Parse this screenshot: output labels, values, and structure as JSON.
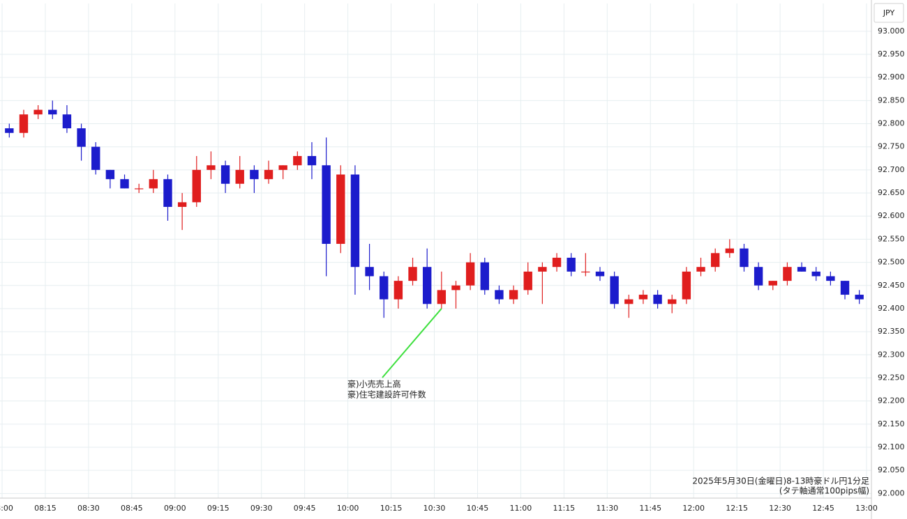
{
  "chart_data": {
    "type": "candlestick",
    "currency_label": "JPY",
    "caption": [
      "2025年5月30日(金曜日)8-13時豪ドル円1分足",
      "(タテ軸通常100pips幅)"
    ],
    "annotation": [
      "豪)小売売上高",
      "豪)住宅建設許可件数"
    ],
    "annotation_time": "10:30",
    "up_color": "#e01e1e",
    "down_color": "#1c1ccc",
    "annotation_color": "#3ee03e",
    "xlim": [
      "08:00",
      "13:00"
    ],
    "xticks": [
      "08:00",
      "08:15",
      "08:30",
      "08:45",
      "09:00",
      "09:15",
      "09:30",
      "09:45",
      "10:00",
      "10:15",
      "10:30",
      "10:45",
      "11:00",
      "11:15",
      "11:30",
      "11:45",
      "12:00",
      "12:15",
      "12:30",
      "12:45",
      "13:00"
    ],
    "ylim": [
      91.99,
      93.06
    ],
    "yticks": [
      {
        "value": 92,
        "label": "92.000"
      },
      {
        "value": 92.05,
        "label": "92.050"
      },
      {
        "value": 92.1,
        "label": "92.100"
      },
      {
        "value": 92.15,
        "label": "92.150"
      },
      {
        "value": 92.2,
        "label": "92.200"
      },
      {
        "value": 92.25,
        "label": "92.250"
      },
      {
        "value": 92.3,
        "label": "92.300"
      },
      {
        "value": 92.35,
        "label": "92.350"
      },
      {
        "value": 92.4,
        "label": "92.400"
      },
      {
        "value": 92.45,
        "label": "92.450"
      },
      {
        "value": 92.5,
        "label": "92.500"
      },
      {
        "value": 92.55,
        "label": "92.550"
      },
      {
        "value": 92.6,
        "label": "92.600"
      },
      {
        "value": 92.65,
        "label": "92.650"
      },
      {
        "value": 92.7,
        "label": "92.700"
      },
      {
        "value": 92.75,
        "label": "92.750"
      },
      {
        "value": 92.8,
        "label": "92.800"
      },
      {
        "value": 92.85,
        "label": "92.850"
      },
      {
        "value": 92.9,
        "label": "92.900"
      },
      {
        "value": 92.95,
        "label": "92.950"
      },
      {
        "value": 93,
        "label": "93.000"
      }
    ],
    "grid": true,
    "x": [
      "08:00",
      "08:05",
      "08:10",
      "08:15",
      "08:20",
      "08:25",
      "08:30",
      "08:35",
      "08:40",
      "08:45",
      "08:50",
      "08:55",
      "09:00",
      "09:05",
      "09:10",
      "09:15",
      "09:20",
      "09:25",
      "09:30",
      "09:35",
      "09:40",
      "09:45",
      "09:50",
      "09:55",
      "10:00",
      "10:05",
      "10:10",
      "10:15",
      "10:20",
      "10:25",
      "10:30",
      "10:35",
      "10:40",
      "10:45",
      "10:50",
      "10:55",
      "11:00",
      "11:05",
      "11:10",
      "11:15",
      "11:20",
      "11:25",
      "11:30",
      "11:35",
      "11:40",
      "11:45",
      "11:50",
      "11:55",
      "12:00",
      "12:05",
      "12:10",
      "12:15",
      "12:20",
      "12:25",
      "12:30",
      "12:35",
      "12:40",
      "12:45",
      "12:50",
      "12:55"
    ],
    "open": [
      92.79,
      92.78,
      92.82,
      92.83,
      92.82,
      92.79,
      92.75,
      92.7,
      92.68,
      92.66,
      92.66,
      92.68,
      92.62,
      92.63,
      92.7,
      92.71,
      92.67,
      92.7,
      92.68,
      92.7,
      92.71,
      92.73,
      92.71,
      92.54,
      92.69,
      92.49,
      92.47,
      92.42,
      92.46,
      92.49,
      92.41,
      92.44,
      92.45,
      92.5,
      92.44,
      92.42,
      92.44,
      92.48,
      92.49,
      92.51,
      92.48,
      92.48,
      92.47,
      92.41,
      92.42,
      92.43,
      92.41,
      92.42,
      92.48,
      92.49,
      92.52,
      92.53,
      92.49,
      92.45,
      92.46,
      92.49,
      92.48,
      92.47,
      92.46,
      92.43
    ],
    "high": [
      92.8,
      92.83,
      92.84,
      92.85,
      92.84,
      92.8,
      92.76,
      92.7,
      92.69,
      92.67,
      92.7,
      92.69,
      92.65,
      92.73,
      92.74,
      92.72,
      92.73,
      92.71,
      92.72,
      92.71,
      92.74,
      92.76,
      92.77,
      92.71,
      92.71,
      92.54,
      92.48,
      92.47,
      92.51,
      92.53,
      92.48,
      92.46,
      92.52,
      92.51,
      92.45,
      92.45,
      92.5,
      92.5,
      92.52,
      92.52,
      92.52,
      92.49,
      92.48,
      92.43,
      92.44,
      92.44,
      92.43,
      92.49,
      92.51,
      92.53,
      92.55,
      92.54,
      92.5,
      92.46,
      92.5,
      92.5,
      92.49,
      92.48,
      92.46,
      92.44
    ],
    "low": [
      92.77,
      92.77,
      92.81,
      92.81,
      92.78,
      92.72,
      92.69,
      92.66,
      92.66,
      92.65,
      92.65,
      92.59,
      92.57,
      92.62,
      92.68,
      92.65,
      92.66,
      92.65,
      92.67,
      92.68,
      92.7,
      92.68,
      92.47,
      92.52,
      92.43,
      92.44,
      92.38,
      92.4,
      92.45,
      92.4,
      92.4,
      92.4,
      92.44,
      92.43,
      92.41,
      92.41,
      92.43,
      92.41,
      92.48,
      92.47,
      92.47,
      92.46,
      92.4,
      92.38,
      92.41,
      92.4,
      92.39,
      92.41,
      92.47,
      92.48,
      92.51,
      92.48,
      92.44,
      92.44,
      92.45,
      92.48,
      92.46,
      92.45,
      92.42,
      92.41
    ],
    "close": [
      92.78,
      92.82,
      92.83,
      92.82,
      92.79,
      92.75,
      92.7,
      92.68,
      92.66,
      92.66,
      92.68,
      92.62,
      92.63,
      92.7,
      92.71,
      92.67,
      92.7,
      92.68,
      92.7,
      92.71,
      92.73,
      92.71,
      92.54,
      92.69,
      92.49,
      92.47,
      92.42,
      92.46,
      92.49,
      92.41,
      92.44,
      92.45,
      92.5,
      92.44,
      92.42,
      92.44,
      92.48,
      92.49,
      92.51,
      92.48,
      92.48,
      92.47,
      92.41,
      92.42,
      92.43,
      92.41,
      92.42,
      92.48,
      92.49,
      92.52,
      92.53,
      92.49,
      92.45,
      92.46,
      92.49,
      92.48,
      92.47,
      92.46,
      92.43,
      92.42
    ]
  }
}
